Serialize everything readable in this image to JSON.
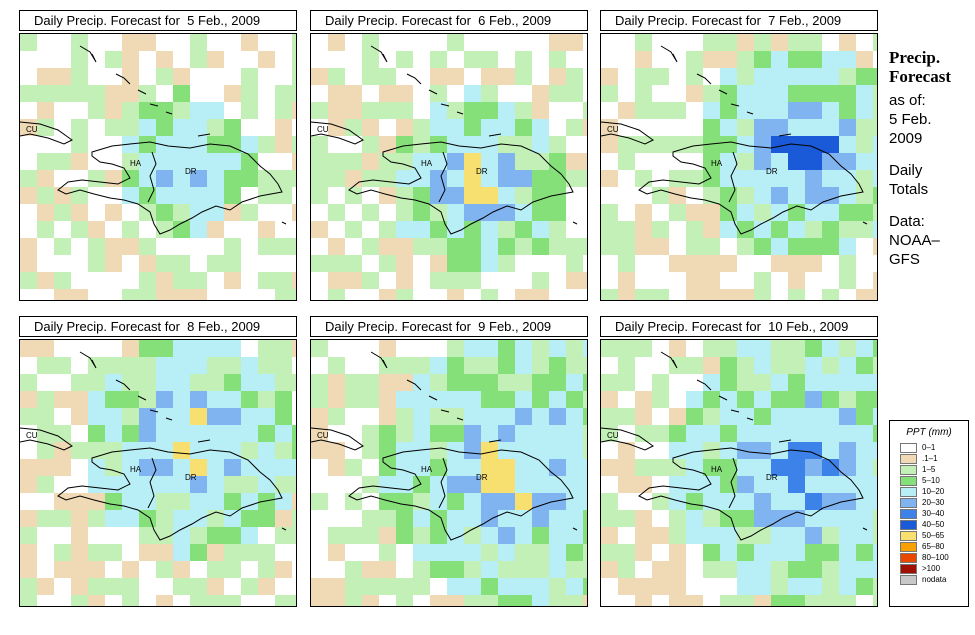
{
  "panels": [
    {
      "title": "Daily Precip. Forecast for  5 Feb., 2009",
      "labels": [
        "CU",
        "HA",
        "DR"
      ]
    },
    {
      "title": "Daily Precip. Forecast for  6 Feb., 2009",
      "labels": [
        "CU",
        "HA",
        "DR"
      ]
    },
    {
      "title": "Daily Precip. Forecast for  7 Feb., 2009",
      "labels": [
        "CU",
        "HA",
        "DR"
      ]
    },
    {
      "title": "Daily Precip. Forecast for  8 Feb., 2009",
      "labels": [
        "CU",
        "HA",
        "DR"
      ]
    },
    {
      "title": "Daily Precip. Forecast for  9 Feb., 2009",
      "labels": [
        "CU",
        "HA",
        "DR"
      ]
    },
    {
      "title": "Daily Precip. Forecast for  10 Feb., 2009",
      "labels": [
        "CU",
        "HA",
        "DR"
      ]
    }
  ],
  "side_info": {
    "title_line1": "Precip.",
    "title_line2": "Forecast",
    "as_of": "as of:",
    "date_line1": "5 Feb.",
    "date_line2": "2009",
    "totals_line1": "Daily",
    "totals_line2": "Totals",
    "data_line1": "Data:",
    "data_line2": "NOAA–",
    "data_line3": "GFS"
  },
  "legend": {
    "title": "PPT (mm)",
    "items": [
      {
        "label": "0–1",
        "color": "#ffffff"
      },
      {
        "label": ".1–1",
        "color": "#f0d9b5"
      },
      {
        "label": "1–5",
        "color": "#c3f0b6"
      },
      {
        "label": "5–10",
        "color": "#86e07a"
      },
      {
        "label": "10–20",
        "color": "#b8eef5"
      },
      {
        "label": "20–30",
        "color": "#80b4f0"
      },
      {
        "label": "30–40",
        "color": "#3c82e8"
      },
      {
        "label": "40–50",
        "color": "#1a5ad8"
      },
      {
        "label": "50–65",
        "color": "#f8e070"
      },
      {
        "label": "65–80",
        "color": "#f8a000"
      },
      {
        "label": "80–100",
        "color": "#e84800"
      },
      {
        "label": ">100",
        "color": "#a01000"
      },
      {
        "label": "nodata",
        "color": "#c8c8c8"
      }
    ]
  }
}
